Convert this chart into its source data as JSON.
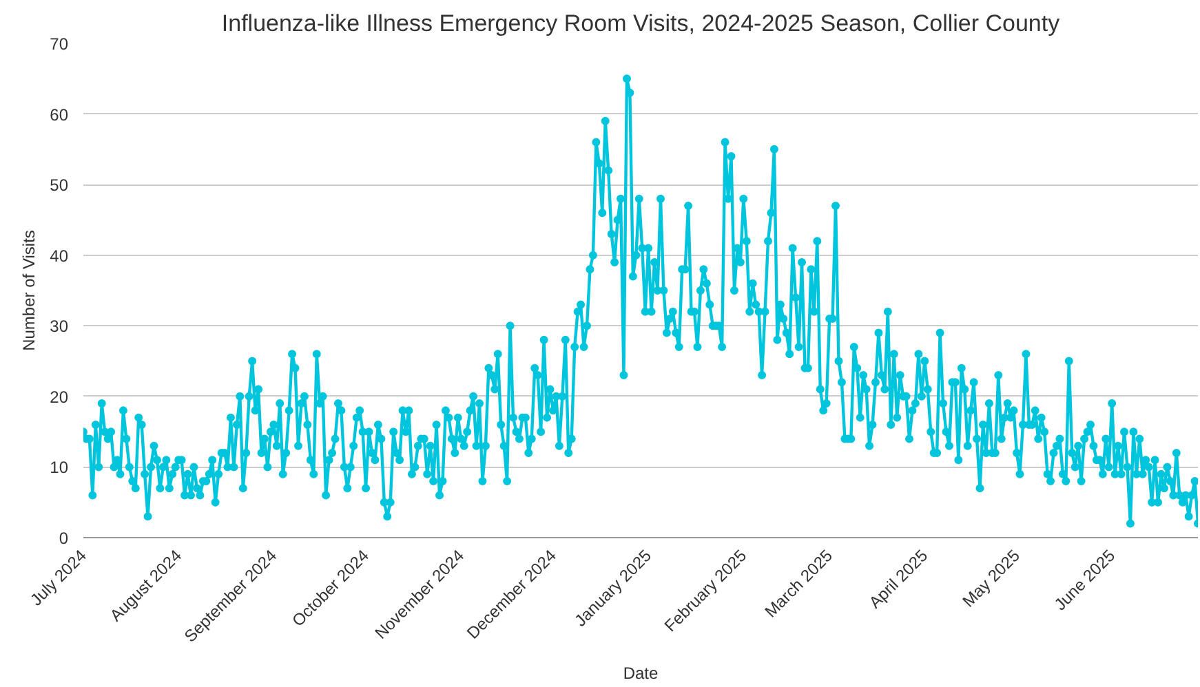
{
  "chart_data": {
    "type": "line",
    "title": "Influenza-like Illness Emergency Room Visits, 2024-2025 Season, Collier County",
    "xlabel": "Date",
    "ylabel": "Number of Visits",
    "x": [
      "2024-07-01",
      "2024-07-02",
      "2024-07-03",
      "2024-07-04",
      "2024-07-05",
      "2024-07-06",
      "2024-07-07",
      "2024-07-08",
      "2024-07-09",
      "2024-07-10",
      "2024-07-11",
      "2024-07-12",
      "2024-07-13",
      "2024-07-14",
      "2024-07-15",
      "2024-07-16",
      "2024-07-17",
      "2024-07-18",
      "2024-07-19",
      "2024-07-20",
      "2024-07-21",
      "2024-07-22",
      "2024-07-23",
      "2024-07-24",
      "2024-07-25",
      "2024-07-26",
      "2024-07-27",
      "2024-07-28",
      "2024-07-29",
      "2024-07-30",
      "2024-07-31",
      "2024-08-01",
      "2024-08-02",
      "2024-08-03",
      "2024-08-04",
      "2024-08-05",
      "2024-08-06",
      "2024-08-07",
      "2024-08-08",
      "2024-08-09",
      "2024-08-10",
      "2024-08-11",
      "2024-08-12",
      "2024-08-13",
      "2024-08-14",
      "2024-08-15",
      "2024-08-16",
      "2024-08-17",
      "2024-08-18",
      "2024-08-19",
      "2024-08-20",
      "2024-08-21",
      "2024-08-22",
      "2024-08-23",
      "2024-08-24",
      "2024-08-25",
      "2024-08-26",
      "2024-08-27",
      "2024-08-28",
      "2024-08-29",
      "2024-08-30",
      "2024-08-31",
      "2024-09-01",
      "2024-09-02",
      "2024-09-03",
      "2024-09-04",
      "2024-09-05",
      "2024-09-06",
      "2024-09-07",
      "2024-09-08",
      "2024-09-09",
      "2024-09-10",
      "2024-09-11",
      "2024-09-12",
      "2024-09-13",
      "2024-09-14",
      "2024-09-15",
      "2024-09-16",
      "2024-09-17",
      "2024-09-18",
      "2024-09-19",
      "2024-09-20",
      "2024-09-21",
      "2024-09-22",
      "2024-09-23",
      "2024-09-24",
      "2024-09-25",
      "2024-09-26",
      "2024-09-27",
      "2024-09-28",
      "2024-09-29",
      "2024-09-30",
      "2024-10-01",
      "2024-10-02",
      "2024-10-03",
      "2024-10-04",
      "2024-10-05",
      "2024-10-06",
      "2024-10-07",
      "2024-10-08",
      "2024-10-09",
      "2024-10-10",
      "2024-10-11",
      "2024-10-12",
      "2024-10-13",
      "2024-10-14",
      "2024-10-15",
      "2024-10-16",
      "2024-10-17",
      "2024-10-18",
      "2024-10-19",
      "2024-10-20",
      "2024-10-21",
      "2024-10-22",
      "2024-10-23",
      "2024-10-24",
      "2024-10-25",
      "2024-10-26",
      "2024-10-27",
      "2024-10-28",
      "2024-10-29",
      "2024-10-30",
      "2024-10-31",
      "2024-11-01",
      "2024-11-02",
      "2024-11-03",
      "2024-11-04",
      "2024-11-05",
      "2024-11-06",
      "2024-11-07",
      "2024-11-08",
      "2024-11-09",
      "2024-11-10",
      "2024-11-11",
      "2024-11-12",
      "2024-11-13",
      "2024-11-14",
      "2024-11-15",
      "2024-11-16",
      "2024-11-17",
      "2024-11-18",
      "2024-11-19",
      "2024-11-20",
      "2024-11-21",
      "2024-11-22",
      "2024-11-23",
      "2024-11-24",
      "2024-11-25",
      "2024-11-26",
      "2024-11-27",
      "2024-11-28",
      "2024-11-29",
      "2024-11-30",
      "2024-12-01",
      "2024-12-02",
      "2024-12-03",
      "2024-12-04",
      "2024-12-05",
      "2024-12-06",
      "2024-12-07",
      "2024-12-08",
      "2024-12-09",
      "2024-12-10",
      "2024-12-11",
      "2024-12-12",
      "2024-12-13",
      "2024-12-14",
      "2024-12-15",
      "2024-12-16",
      "2024-12-17",
      "2024-12-18",
      "2024-12-19",
      "2024-12-20",
      "2024-12-21",
      "2024-12-22",
      "2024-12-23",
      "2024-12-24",
      "2024-12-25",
      "2024-12-26",
      "2024-12-27",
      "2024-12-28",
      "2024-12-29",
      "2024-12-30",
      "2024-12-31",
      "2025-01-01",
      "2025-01-02",
      "2025-01-03",
      "2025-01-04",
      "2025-01-05",
      "2025-01-06",
      "2025-01-07",
      "2025-01-08",
      "2025-01-09",
      "2025-01-10",
      "2025-01-11",
      "2025-01-12",
      "2025-01-13",
      "2025-01-14",
      "2025-01-15",
      "2025-01-16",
      "2025-01-17",
      "2025-01-18",
      "2025-01-19",
      "2025-01-20",
      "2025-01-21",
      "2025-01-22",
      "2025-01-23",
      "2025-01-24",
      "2025-01-25",
      "2025-01-26",
      "2025-01-27",
      "2025-01-28",
      "2025-01-29",
      "2025-01-30",
      "2025-01-31",
      "2025-02-01",
      "2025-02-02",
      "2025-02-03",
      "2025-02-04",
      "2025-02-05",
      "2025-02-06",
      "2025-02-07",
      "2025-02-08",
      "2025-02-09",
      "2025-02-10",
      "2025-02-11",
      "2025-02-12",
      "2025-02-13",
      "2025-02-14",
      "2025-02-15",
      "2025-02-16",
      "2025-02-17",
      "2025-02-18",
      "2025-02-19",
      "2025-02-20",
      "2025-02-21",
      "2025-02-22",
      "2025-02-23",
      "2025-02-24",
      "2025-02-25",
      "2025-02-26",
      "2025-02-27",
      "2025-02-28",
      "2025-03-01",
      "2025-03-02",
      "2025-03-03",
      "2025-03-04",
      "2025-03-05",
      "2025-03-06",
      "2025-03-07",
      "2025-03-08",
      "2025-03-09",
      "2025-03-10",
      "2025-03-11",
      "2025-03-12",
      "2025-03-13",
      "2025-03-14",
      "2025-03-15",
      "2025-03-16",
      "2025-03-17",
      "2025-03-18",
      "2025-03-19",
      "2025-03-20",
      "2025-03-21",
      "2025-03-22",
      "2025-03-23",
      "2025-03-24",
      "2025-03-25",
      "2025-03-26",
      "2025-03-27",
      "2025-03-28",
      "2025-03-29",
      "2025-03-30",
      "2025-03-31",
      "2025-04-01",
      "2025-04-02",
      "2025-04-03",
      "2025-04-04",
      "2025-04-05",
      "2025-04-06",
      "2025-04-07",
      "2025-04-08",
      "2025-04-09",
      "2025-04-10",
      "2025-04-11",
      "2025-04-12",
      "2025-04-13",
      "2025-04-14",
      "2025-04-15",
      "2025-04-16",
      "2025-04-17",
      "2025-04-18",
      "2025-04-19",
      "2025-04-20",
      "2025-04-21",
      "2025-04-22",
      "2025-04-23",
      "2025-04-24",
      "2025-04-25",
      "2025-04-26",
      "2025-04-27",
      "2025-04-28",
      "2025-04-29",
      "2025-04-30",
      "2025-05-01",
      "2025-05-02",
      "2025-05-03",
      "2025-05-04",
      "2025-05-05",
      "2025-05-06",
      "2025-05-07",
      "2025-05-08",
      "2025-05-09",
      "2025-05-10",
      "2025-05-11",
      "2025-05-12",
      "2025-05-13",
      "2025-05-14",
      "2025-05-15",
      "2025-05-16",
      "2025-05-17",
      "2025-05-18",
      "2025-05-19",
      "2025-05-20",
      "2025-05-21",
      "2025-05-22",
      "2025-05-23",
      "2025-05-24",
      "2025-05-25",
      "2025-05-26",
      "2025-05-27",
      "2025-05-28",
      "2025-05-29",
      "2025-05-30",
      "2025-05-31",
      "2025-06-01",
      "2025-06-02",
      "2025-06-03",
      "2025-06-04",
      "2025-06-05",
      "2025-06-06",
      "2025-06-07",
      "2025-06-08",
      "2025-06-09",
      "2025-06-10",
      "2025-06-11",
      "2025-06-12",
      "2025-06-13",
      "2025-06-14",
      "2025-06-15",
      "2025-06-16",
      "2025-06-17",
      "2025-06-18",
      "2025-06-19",
      "2025-06-20",
      "2025-06-21",
      "2025-06-22",
      "2025-06-23",
      "2025-06-24",
      "2025-06-25",
      "2025-06-26",
      "2025-06-27",
      "2025-06-28",
      "2025-06-29"
    ],
    "series": [
      {
        "color": "#00c5dc",
        "values": [
          15,
          14,
          14,
          6,
          16,
          10,
          19,
          15,
          14,
          15,
          10,
          11,
          9,
          18,
          14,
          10,
          8,
          7,
          17,
          16,
          9,
          3,
          10,
          13,
          11,
          7,
          10,
          11,
          7,
          9,
          10,
          11,
          11,
          6,
          9,
          6,
          10,
          7,
          6,
          8,
          8,
          9,
          11,
          5,
          9,
          12,
          12,
          10,
          17,
          10,
          16,
          20,
          7,
          12,
          20,
          25,
          18,
          21,
          12,
          14,
          10,
          15,
          16,
          13,
          19,
          9,
          12,
          18,
          26,
          24,
          13,
          19,
          20,
          16,
          11,
          9,
          26,
          19,
          20,
          6,
          11,
          12,
          14,
          19,
          18,
          10,
          7,
          10,
          13,
          17,
          18,
          15,
          7,
          15,
          12,
          11,
          16,
          14,
          5,
          3,
          5,
          15,
          12,
          11,
          18,
          15,
          18,
          9,
          10,
          13,
          14,
          14,
          9,
          13,
          8,
          16,
          6,
          8,
          18,
          17,
          14,
          12,
          17,
          14,
          13,
          15,
          18,
          20,
          13,
          19,
          8,
          13,
          24,
          23,
          21,
          26,
          16,
          13,
          8,
          30,
          17,
          15,
          14,
          17,
          17,
          12,
          14,
          24,
          23,
          15,
          28,
          17,
          21,
          18,
          20,
          13,
          20,
          28,
          12,
          14,
          27,
          32,
          33,
          27,
          30,
          38,
          40,
          56,
          53,
          46,
          59,
          52,
          43,
          39,
          45,
          48,
          23,
          65,
          63,
          37,
          40,
          48,
          41,
          32,
          41,
          32,
          39,
          35,
          48,
          35,
          29,
          31,
          32,
          29,
          27,
          38,
          38,
          47,
          32,
          32,
          27,
          35,
          38,
          36,
          33,
          30,
          30,
          30,
          27,
          56,
          48,
          54,
          35,
          41,
          39,
          48,
          42,
          32,
          36,
          33,
          32,
          23,
          32,
          42,
          46,
          55,
          28,
          33,
          31,
          29,
          26,
          41,
          34,
          27,
          39,
          24,
          24,
          38,
          32,
          42,
          21,
          18,
          19,
          31,
          31,
          47,
          25,
          22,
          14,
          14,
          14,
          27,
          24,
          17,
          23,
          21,
          13,
          16,
          22,
          29,
          23,
          21,
          32,
          16,
          26,
          17,
          23,
          20,
          20,
          14,
          18,
          19,
          26,
          20,
          25,
          21,
          15,
          12,
          12,
          29,
          19,
          15,
          13,
          22,
          22,
          11,
          24,
          21,
          13,
          18,
          22,
          14,
          7,
          16,
          12,
          19,
          12,
          12,
          23,
          14,
          17,
          19,
          17,
          18,
          12,
          9,
          16,
          26,
          16,
          16,
          18,
          14,
          17,
          15,
          9,
          8,
          12,
          13,
          14,
          9,
          8,
          25,
          12,
          10,
          13,
          8,
          14,
          15,
          16,
          13,
          11,
          11,
          9,
          14,
          10,
          19,
          9,
          13,
          9,
          15,
          10,
          2,
          15,
          9,
          14,
          9,
          11,
          10,
          5,
          11,
          5,
          9,
          7,
          10,
          8,
          6,
          12,
          6,
          5,
          6,
          3,
          6,
          8,
          2
        ]
      }
    ],
    "xlim": [
      "2024-07-01",
      "2025-06-29"
    ],
    "xticks": [
      {
        "value": "2024-07-01",
        "label": "July 2024"
      },
      {
        "value": "2024-08-01",
        "label": "August 2024"
      },
      {
        "value": "2024-09-01",
        "label": "September 2024"
      },
      {
        "value": "2024-10-01",
        "label": "October 2024"
      },
      {
        "value": "2024-11-01",
        "label": "November 2024"
      },
      {
        "value": "2024-12-01",
        "label": "December 2024"
      },
      {
        "value": "2025-01-01",
        "label": "January 2025"
      },
      {
        "value": "2025-02-01",
        "label": "February 2025"
      },
      {
        "value": "2025-03-01",
        "label": "March 2025"
      },
      {
        "value": "2025-04-01",
        "label": "April 2025"
      },
      {
        "value": "2025-05-01",
        "label": "May 2025"
      },
      {
        "value": "2025-06-01",
        "label": "June 2025"
      }
    ],
    "ylim": [
      0,
      70
    ],
    "yticks": [
      0,
      10,
      20,
      30,
      40,
      50,
      60,
      70
    ],
    "grid": "y",
    "marker": "circle",
    "line_style": "solid"
  }
}
